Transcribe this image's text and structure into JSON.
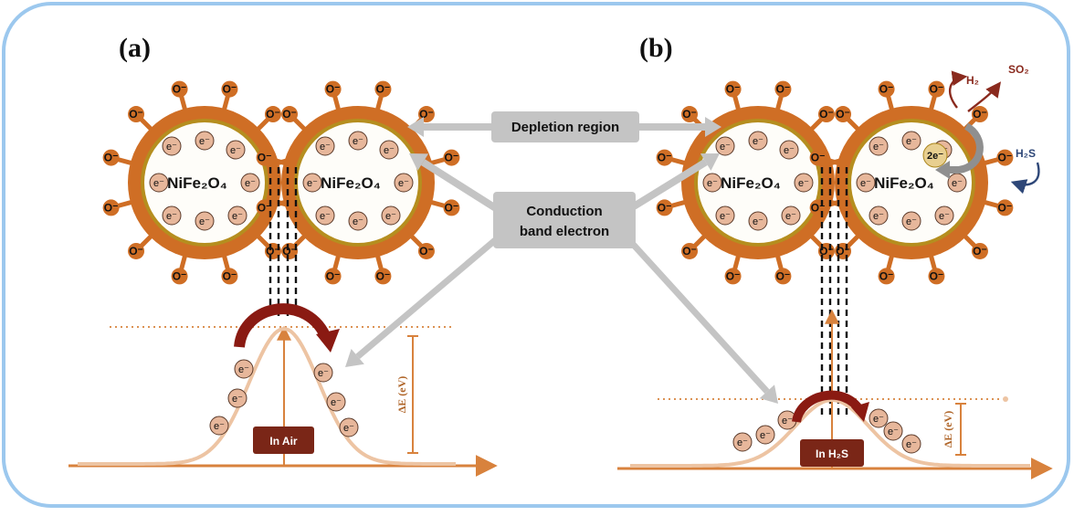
{
  "panels": [
    {
      "label": "(a)",
      "core_label": "NiFe₂O₄",
      "atmosphere": "In Air",
      "barrier_label": "ΔE (eV)"
    },
    {
      "label": "(b)",
      "core_label": "NiFe₂O₄",
      "atmosphere": "In H₂S",
      "barrier_label": "ΔE (eV)"
    }
  ],
  "callouts": {
    "depletion": "Depletion region",
    "conduction_line1": "Conduction",
    "conduction_line2": "band electron"
  },
  "species": {
    "oxygen_ion": "O⁻",
    "electron": "e⁻",
    "two_electron": "2e⁻",
    "h2": "H₂",
    "so2": "SO₂",
    "h2s": "H₂S"
  },
  "colors": {
    "frame": "#9cc8ee",
    "shell": "#cf6e25",
    "core": "#fefdf9",
    "core_ring": "#b58e1f",
    "electron_fill": "#e7b79b",
    "curve": "#edc4a3",
    "axis": "#d8823d",
    "arrow_red": "#8a1a12",
    "callout_bg": "#c4c4c4",
    "label_box": "#7a2617",
    "h2s_arrow": "#2e4778",
    "so2_arrow": "#8a2a1e"
  }
}
